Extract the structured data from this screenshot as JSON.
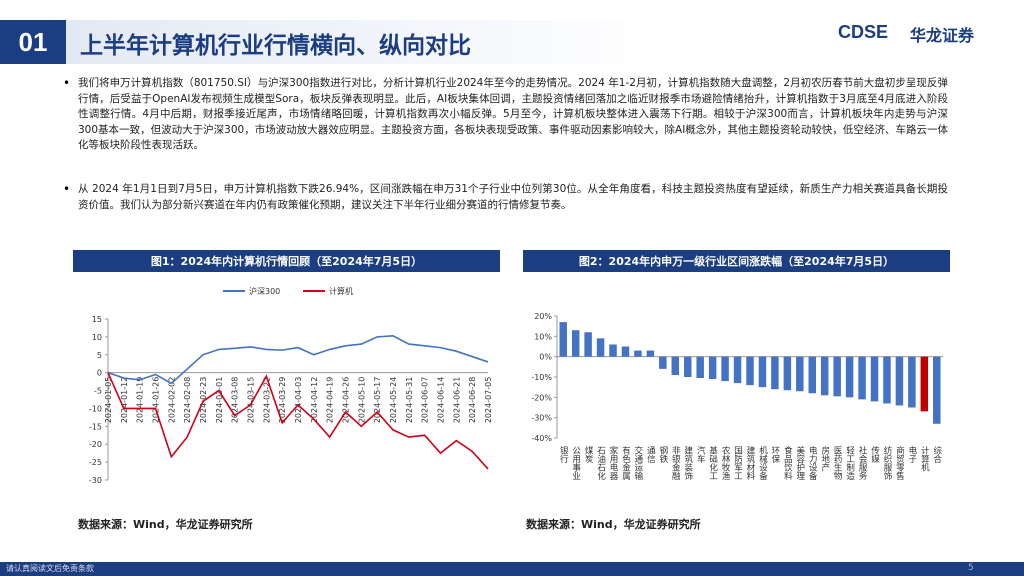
{
  "header": {
    "number": "01",
    "title": "上半年计算机行业行情横向、纵向对比",
    "logo_text": "CDSE",
    "logo_name": "华龙证券"
  },
  "bullets": [
    "我们将申万计算机指数（801750.SI）与沪深300指数进行对比，分析计算机行业2024年至今的走势情况。2024 年1-2月初，计算机指数随大盘调整，2月初农历春节前大盘初步呈现反弹行情，后受益于OpenAI发布视频生成模型Sora，板块反弹表现明显。此后，AI板块集体回调，主题投资情绪回落加之临近财报季市场避险情绪抬升，计算机指数于3月底至4月底进入阶段性调整行情。4月中后期，财报季接近尾声，市场情绪略回暖，计算机指数再次小幅反弹。5月至今，计算机板块整体进入震荡下行期。相较于沪深300而言，计算机板块年内走势与沪深300基本一致，但波动大于沪深300，市场波动放大器效应明显。主题投资方面，各板块表现受政策、事件驱动因素影响较大，除AI概念外，其他主题投资轮动较快，低空经济、车路云一体化等板块阶段性表现活跃。",
    "从 2024 年1月1日到7月5日，申万计算机指数下跌26.94%，区间涨跌幅在申万31个子行业中位列第30位。从全年角度看，科技主题投资热度有望延续，新质生产力相关赛道具备长期投资价值。我们认为部分新兴赛道在年内仍有政策催化预期，建议关注下半年行业细分赛道的行情修复节奏。"
  ],
  "chart_data": [
    {
      "type": "line",
      "title": "图1：2024年内计算机行情回顾（至2024年7月5日）",
      "source": "数据来源：Wind，华龙证券研究所",
      "categories": [
        "2024-01-05",
        "2024-01-12",
        "2024-01-19",
        "2024-01-26",
        "2024-02-02",
        "2024-02-08",
        "2024-02-23",
        "2024-03-01",
        "2024-03-08",
        "2024-03-15",
        "2024-03-22",
        "2024-03-29",
        "2024-04-03",
        "2024-04-12",
        "2024-04-19",
        "2024-04-26",
        "2024-05-10",
        "2024-05-17",
        "2024-05-24",
        "2024-05-31",
        "2024-06-07",
        "2024-06-14",
        "2024-06-21",
        "2024-06-28",
        "2024-07-05"
      ],
      "series": [
        {
          "name": "沪深300",
          "color": "#4472c4",
          "values": [
            0,
            -1.5,
            -2,
            -0.5,
            -3,
            1,
            5,
            6.5,
            6.8,
            7.2,
            6.5,
            6.3,
            7,
            5,
            6.5,
            7.5,
            8,
            10,
            10.3,
            8,
            7.5,
            7,
            6,
            4.5,
            3
          ]
        },
        {
          "name": "计算机",
          "color": "#d0021b",
          "values": [
            0,
            -10,
            -10,
            -10,
            -23.5,
            -18,
            -8,
            -5,
            -12,
            -9,
            -1,
            -14,
            -9,
            -13,
            -18,
            -11,
            -15,
            -11,
            -16,
            -18,
            -17.5,
            -22.5,
            -19,
            -22,
            -26.9
          ]
        }
      ],
      "ylim": [
        -30,
        15
      ],
      "yticks": [
        15,
        10,
        5,
        0,
        -5,
        -10,
        -15,
        -20,
        -25,
        -30
      ],
      "grid": false,
      "legend": "top"
    },
    {
      "type": "bar",
      "title": "图2：2024年内申万一级行业区间涨跌幅（至2024年7月5日）",
      "source": "数据来源：Wind，华龙证券研究所",
      "categories": [
        "银行",
        "公用事业",
        "煤炭",
        "石油石化",
        "家用电器",
        "有色金属",
        "交通运输",
        "通信",
        "钢铁",
        "非银金融",
        "建筑装饰",
        "汽车",
        "基础化工",
        "农林牧渔",
        "国防军工",
        "建筑材料",
        "机械设备",
        "环保",
        "食品饮料",
        "美容护理",
        "电力设备",
        "房地产",
        "医药生物",
        "轻工制造",
        "社会服务",
        "传媒",
        "纺织服饰",
        "商贸零售",
        "电子",
        "计算机",
        "综合"
      ],
      "values": [
        17,
        13,
        12,
        9,
        6,
        5,
        3,
        3,
        -6,
        -9,
        -10,
        -10.5,
        -11,
        -12,
        -13,
        -14,
        -15,
        -16,
        -16.5,
        -17,
        -18,
        -19,
        -19.5,
        -20,
        -21,
        -22,
        -23,
        -24,
        -25,
        -26.9,
        -33
      ],
      "colors": [
        "#4472c4",
        "#4472c4",
        "#4472c4",
        "#4472c4",
        "#4472c4",
        "#4472c4",
        "#4472c4",
        "#4472c4",
        "#4472c4",
        "#4472c4",
        "#4472c4",
        "#4472c4",
        "#4472c4",
        "#4472c4",
        "#4472c4",
        "#4472c4",
        "#4472c4",
        "#4472c4",
        "#4472c4",
        "#4472c4",
        "#4472c4",
        "#4472c4",
        "#4472c4",
        "#4472c4",
        "#4472c4",
        "#4472c4",
        "#4472c4",
        "#4472c4",
        "#4472c4",
        "#c00000",
        "#4472c4"
      ],
      "ylim": [
        -40,
        20
      ],
      "yticks": [
        {
          "value": 20,
          "label": "20%"
        },
        {
          "value": 10,
          "label": "10%"
        },
        {
          "value": 0,
          "label": "0%"
        },
        {
          "value": -10,
          "label": "-10%"
        },
        {
          "value": -20,
          "label": "-20%"
        },
        {
          "value": -30,
          "label": "-30%"
        },
        {
          "value": -40,
          "label": "-40%"
        }
      ],
      "grid": false
    }
  ],
  "footer": {
    "disclaimer": "请认真阅读文后免责条款",
    "page": "5"
  }
}
